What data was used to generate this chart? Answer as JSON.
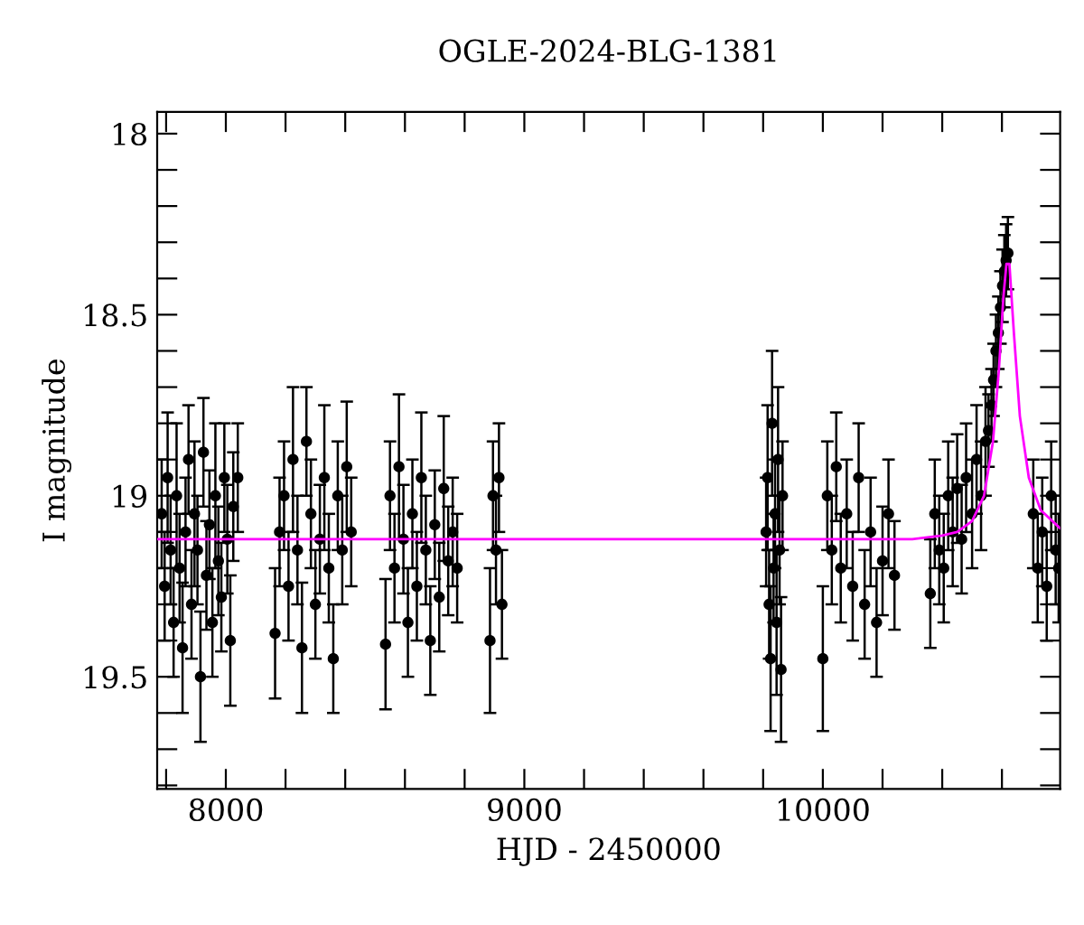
{
  "chart_data": {
    "type": "scatter",
    "title": "OGLE-2024-BLG-1381",
    "xlabel": "HJD - 2450000",
    "ylabel": "I magnitude",
    "xlim": [
      7770,
      10795
    ],
    "ylim": [
      19.81,
      17.94
    ],
    "xticks": [
      {
        "value": 7800,
        "label": null
      },
      8000,
      {
        "value": 8200,
        "label": null
      },
      {
        "value": 8400,
        "label": null
      },
      {
        "value": 8600,
        "label": null
      },
      {
        "value": 8800,
        "label": null
      },
      9000,
      {
        "value": 9200,
        "label": null
      },
      {
        "value": 9400,
        "label": null
      },
      {
        "value": 9600,
        "label": null
      },
      {
        "value": 9800,
        "label": null
      },
      10000,
      {
        "value": 10200,
        "label": null
      },
      {
        "value": 10400,
        "label": null
      },
      {
        "value": 10600,
        "label": null
      }
    ],
    "yticks": [
      18,
      {
        "value": 18.1,
        "label": null
      },
      {
        "value": 18.2,
        "label": null
      },
      {
        "value": 18.3,
        "label": null
      },
      {
        "value": 18.4,
        "label": null
      },
      18.5,
      {
        "value": 18.6,
        "label": null
      },
      {
        "value": 18.7,
        "label": null
      },
      {
        "value": 18.8,
        "label": null
      },
      {
        "value": 18.9,
        "label": null
      },
      19,
      {
        "value": 19.1,
        "label": null
      },
      {
        "value": 19.2,
        "label": null
      },
      {
        "value": 19.3,
        "label": null
      },
      {
        "value": 19.4,
        "label": null
      },
      19.5,
      {
        "value": 19.6,
        "label": null
      },
      {
        "value": 19.7,
        "label": null
      },
      {
        "value": 19.8,
        "label": null
      }
    ],
    "grid": false,
    "legend": false,
    "marker": "circle",
    "series": [
      {
        "color": "#000000",
        "x": [
          7785,
          7795,
          7805,
          7815,
          7825,
          7835,
          7845,
          7855,
          7865,
          7875,
          7885,
          7895,
          7905,
          7915,
          7925,
          7935,
          7945,
          7955,
          7965,
          7975,
          7985,
          7995,
          8005,
          8015,
          8025,
          8040,
          8165,
          8180,
          8195,
          8210,
          8225,
          8240,
          8255,
          8270,
          8285,
          8300,
          8315,
          8330,
          8345,
          8360,
          8375,
          8390,
          8405,
          8420,
          8535,
          8550,
          8565,
          8580,
          8595,
          8610,
          8625,
          8640,
          8655,
          8670,
          8685,
          8700,
          8715,
          8730,
          8745,
          8760,
          8775,
          8885,
          8895,
          8905,
          8915,
          8925,
          9810,
          9815,
          9820,
          9825,
          9830,
          9835,
          9840,
          9845,
          9850,
          9855,
          9860,
          9865,
          10000,
          10015,
          10030,
          10045,
          10060,
          10080,
          10100,
          10120,
          10140,
          10160,
          10180,
          10200,
          10220,
          10240,
          10360,
          10375,
          10390,
          10405,
          10420,
          10435,
          10450,
          10465,
          10480,
          10500,
          10515,
          10530,
          10545,
          10555,
          10565,
          10572,
          10580,
          10588,
          10595,
          10602,
          10608,
          10614,
          10620,
          10705,
          10720,
          10735,
          10750,
          10765,
          10780,
          10790
        ],
        "values": [
          19.05,
          19.25,
          18.95,
          19.15,
          19.35,
          19.0,
          19.2,
          19.42,
          19.1,
          18.9,
          19.3,
          19.05,
          19.15,
          19.5,
          18.88,
          19.22,
          19.08,
          19.35,
          19.0,
          19.18,
          19.28,
          18.95,
          19.12,
          19.4,
          19.03,
          18.95,
          19.38,
          19.1,
          19.0,
          19.25,
          18.9,
          19.15,
          19.42,
          18.85,
          19.05,
          19.3,
          19.12,
          18.95,
          19.2,
          19.45,
          19.0,
          19.15,
          18.92,
          19.1,
          19.41,
          19.0,
          19.2,
          18.92,
          19.12,
          19.35,
          19.05,
          19.25,
          18.95,
          19.15,
          19.4,
          19.08,
          19.28,
          18.98,
          19.18,
          19.1,
          19.2,
          19.4,
          19.0,
          19.15,
          18.95,
          19.3,
          19.1,
          18.95,
          19.3,
          19.45,
          18.8,
          19.2,
          19.05,
          19.35,
          18.9,
          19.15,
          19.48,
          19.0,
          19.45,
          19.0,
          19.15,
          18.92,
          19.2,
          19.05,
          19.25,
          18.95,
          19.3,
          19.1,
          19.35,
          19.18,
          19.05,
          19.22,
          19.27,
          19.05,
          19.15,
          19.2,
          19.0,
          19.1,
          18.98,
          19.12,
          18.95,
          19.05,
          18.9,
          19.0,
          18.85,
          18.82,
          18.75,
          18.68,
          18.6,
          18.55,
          18.48,
          18.42,
          18.38,
          18.35,
          18.33,
          19.05,
          19.2,
          19.1,
          19.25,
          19.0,
          19.15,
          19.2
        ],
        "errors": [
          0.15,
          0.15,
          0.18,
          0.15,
          0.15,
          0.2,
          0.15,
          0.18,
          0.15,
          0.15,
          0.15,
          0.2,
          0.15,
          0.18,
          0.15,
          0.15,
          0.15,
          0.15,
          0.2,
          0.15,
          0.15,
          0.15,
          0.15,
          0.18,
          0.15,
          0.15,
          0.18,
          0.15,
          0.15,
          0.15,
          0.2,
          0.15,
          0.18,
          0.15,
          0.15,
          0.15,
          0.15,
          0.2,
          0.15,
          0.15,
          0.15,
          0.15,
          0.18,
          0.15,
          0.18,
          0.15,
          0.15,
          0.2,
          0.15,
          0.15,
          0.15,
          0.15,
          0.18,
          0.15,
          0.15,
          0.15,
          0.15,
          0.2,
          0.15,
          0.15,
          0.15,
          0.2,
          0.15,
          0.15,
          0.15,
          0.15,
          0.15,
          0.2,
          0.15,
          0.2,
          0.2,
          0.15,
          0.15,
          0.2,
          0.2,
          0.15,
          0.2,
          0.15,
          0.2,
          0.15,
          0.15,
          0.15,
          0.15,
          0.15,
          0.15,
          0.15,
          0.15,
          0.15,
          0.15,
          0.15,
          0.15,
          0.15,
          0.15,
          0.15,
          0.15,
          0.15,
          0.15,
          0.15,
          0.15,
          0.15,
          0.15,
          0.15,
          0.15,
          0.15,
          0.15,
          0.1,
          0.1,
          0.1,
          0.1,
          0.1,
          0.1,
          0.1,
          0.1,
          0.1,
          0.1,
          0.15,
          0.15,
          0.15,
          0.15,
          0.15,
          0.15,
          0.15
        ]
      },
      {
        "type": "line",
        "color": "#ff00ff",
        "marker": "none",
        "line_style": "solid",
        "x": [
          7770,
          10300,
          10400,
          10450,
          10500,
          10540,
          10570,
          10590,
          10605,
          10615,
          10625,
          10640,
          10660,
          10690,
          10730,
          10795
        ],
        "values": [
          19.12,
          19.12,
          19.11,
          19.1,
          19.07,
          19.0,
          18.85,
          18.65,
          18.45,
          18.36,
          18.36,
          18.55,
          18.78,
          18.95,
          19.04,
          19.09
        ]
      }
    ]
  }
}
